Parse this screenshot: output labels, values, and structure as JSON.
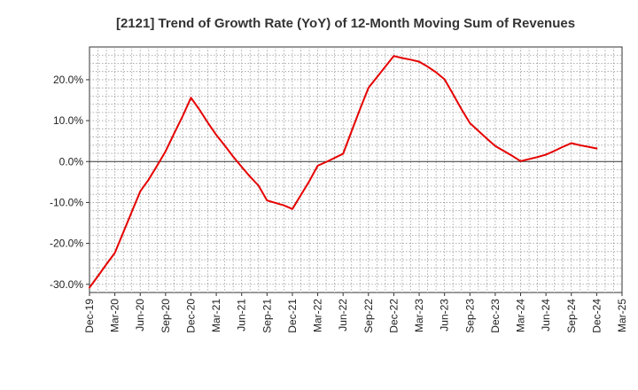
{
  "chart_data": {
    "type": "line",
    "title": "[2121]  Trend of Growth Rate (YoY) of 12-Month Moving Sum of Revenues",
    "xlabel": "",
    "ylabel": "",
    "x_ticks": [
      "Dec-19",
      "Mar-20",
      "Jun-20",
      "Sep-20",
      "Dec-20",
      "Mar-21",
      "Jun-21",
      "Sep-21",
      "Dec-21",
      "Mar-22",
      "Jun-22",
      "Sep-22",
      "Dec-22",
      "Mar-23",
      "Jun-23",
      "Sep-23",
      "Dec-23",
      "Mar-24",
      "Jun-24",
      "Sep-24",
      "Dec-24",
      "Mar-25"
    ],
    "y_ticks": [
      {
        "value": 20,
        "label": "20.0%"
      },
      {
        "value": 10,
        "label": "10.0%"
      },
      {
        "value": 0,
        "label": "0.0%"
      },
      {
        "value": -10,
        "label": "-10.0%"
      },
      {
        "value": -20,
        "label": "-20.0%"
      },
      {
        "value": -30,
        "label": "-30.0%"
      }
    ],
    "ylim": [
      -32,
      28
    ],
    "grid": true,
    "series": [
      {
        "color": "#e60000",
        "x": [
          "Dec-19",
          "Jan-20",
          "Feb-20",
          "Mar-20",
          "Apr-20",
          "May-20",
          "Jun-20",
          "Jul-20",
          "Aug-20",
          "Sep-20",
          "Oct-20",
          "Nov-20",
          "Dec-20",
          "Jan-21",
          "Feb-21",
          "Mar-21",
          "Apr-21",
          "May-21",
          "Jun-21",
          "Jul-21",
          "Aug-21",
          "Sep-21",
          "Oct-21",
          "Nov-21",
          "Dec-21",
          "Jan-22",
          "Feb-22",
          "Mar-22",
          "Apr-22",
          "May-22",
          "Jun-22",
          "Jul-22",
          "Aug-22",
          "Sep-22",
          "Oct-22",
          "Nov-22",
          "Dec-22",
          "Jan-23",
          "Feb-23",
          "Mar-23",
          "Apr-23",
          "May-23",
          "Jun-23",
          "Jul-23",
          "Aug-23",
          "Sep-23",
          "Oct-23",
          "Nov-23",
          "Dec-23",
          "Jan-24",
          "Feb-24",
          "Mar-24",
          "Apr-24",
          "May-24",
          "Jun-24",
          "Jul-24",
          "Aug-24",
          "Sep-24",
          "Oct-24",
          "Nov-24",
          "Dec-24"
        ],
        "values": [
          -30.8,
          -28.0,
          -25.1,
          -22.3,
          -17.3,
          -12.3,
          -7.3,
          -4.4,
          -1.0,
          2.5,
          6.8,
          11.0,
          15.6,
          12.7,
          9.5,
          6.5,
          3.9,
          1.2,
          -1.3,
          -3.7,
          -5.9,
          -9.5,
          -10.1,
          -10.7,
          -11.6,
          -8.2,
          -4.8,
          -1.0,
          -0.1,
          0.9,
          1.9,
          7.4,
          12.8,
          18.0,
          20.6,
          23.2,
          25.8,
          25.3,
          24.9,
          24.4,
          23.2,
          21.8,
          20.1,
          16.5,
          12.8,
          9.4,
          7.5,
          5.6,
          3.8,
          2.6,
          1.4,
          0.1,
          0.6,
          1.1,
          1.7,
          2.6,
          3.6,
          4.5,
          4.0,
          3.6,
          3.2
        ]
      }
    ]
  }
}
